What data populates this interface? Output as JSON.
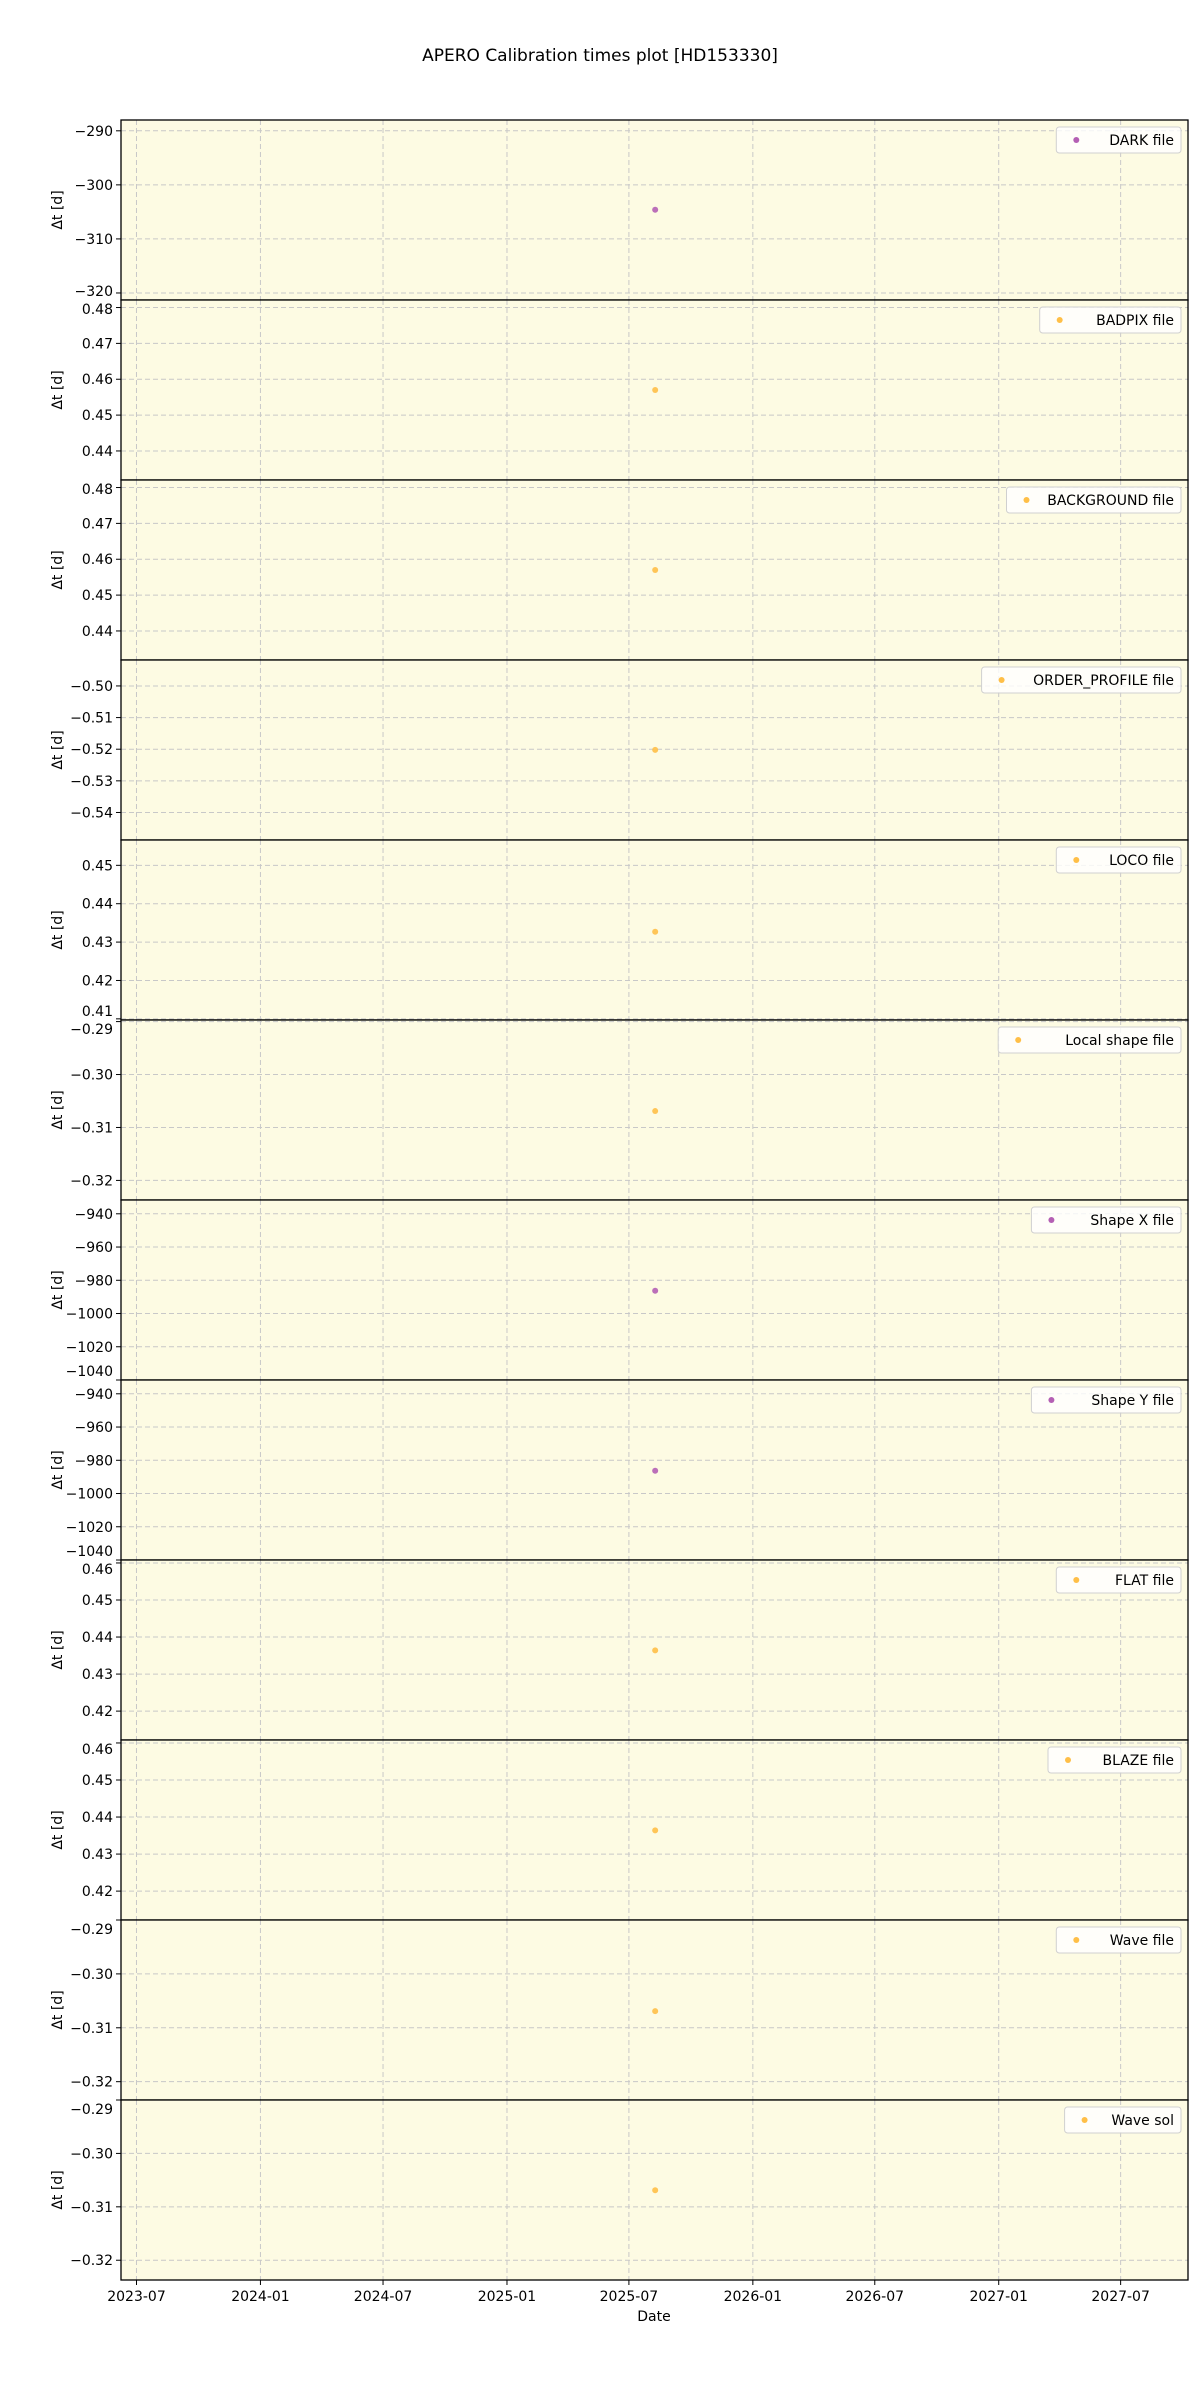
{
  "chart_data": {
    "type": "scatter",
    "title": "APERO Calibration times plot [HD153330]",
    "xlabel": "Date",
    "xlim": [
      "2023-06-08",
      "2027-10-09"
    ],
    "xticks": [
      "2023-07",
      "2024-01",
      "2024-07",
      "2025-01",
      "2025-07",
      "2026-01",
      "2026-07",
      "2027-01",
      "2027-07"
    ],
    "grid": true,
    "background_color": "#fdfbe3",
    "legend_placement": "upper right",
    "colors": {
      "purple": "#b45fb4",
      "orange": "#ffbf47"
    },
    "panels": [
      {
        "name": "DARK file",
        "ylabel": "Δt [d]",
        "color": "purple",
        "ylim": [
          -321.3,
          -288.0
        ],
        "yticks": [
          "−290",
          "−300",
          "−310",
          "−320"
        ],
        "ytick_values": [
          -290,
          -300,
          -310,
          -320
        ],
        "points": [
          {
            "x": "2025-08-09",
            "y": -304.6
          }
        ]
      },
      {
        "name": "BADPIX file",
        "ylabel": "Δt [d]",
        "color": "orange",
        "ylim": [
          0.4319,
          0.4821
        ],
        "yticks": [
          "0.48",
          "0.47",
          "0.46",
          "0.45",
          "0.44"
        ],
        "ytick_values": [
          0.48,
          0.47,
          0.46,
          0.45,
          0.44
        ],
        "points": [
          {
            "x": "2025-08-09",
            "y": 0.457
          }
        ]
      },
      {
        "name": "BACKGROUND file",
        "ylabel": "Δt [d]",
        "color": "orange",
        "ylim": [
          0.4319,
          0.4821
        ],
        "yticks": [
          "0.48",
          "0.47",
          "0.46",
          "0.45",
          "0.44"
        ],
        "ytick_values": [
          0.48,
          0.47,
          0.46,
          0.45,
          0.44
        ],
        "points": [
          {
            "x": "2025-08-09",
            "y": 0.457
          }
        ]
      },
      {
        "name": "ORDER_PROFILE file",
        "ylabel": "Δt [d]",
        "color": "orange",
        "ylim": [
          -0.5487,
          -0.4918
        ],
        "yticks": [
          "−0.50",
          "−0.51",
          "−0.52",
          "−0.53",
          "−0.54"
        ],
        "ytick_values": [
          -0.5,
          -0.51,
          -0.52,
          -0.53,
          -0.54
        ],
        "points": [
          {
            "x": "2025-08-09",
            "y": -0.5202
          }
        ]
      },
      {
        "name": "LOCO file",
        "ylabel": "Δt [d]",
        "color": "orange",
        "ylim": [
          0.4097,
          0.4566
        ],
        "yticks": [
          "0.45",
          "0.44",
          "0.43",
          "0.42",
          "0.41"
        ],
        "ytick_values": [
          0.45,
          0.44,
          0.43,
          0.42,
          0.41
        ],
        "points": [
          {
            "x": "2025-08-09",
            "y": 0.4327
          }
        ]
      },
      {
        "name": "Local shape file",
        "ylabel": "Δt [d]",
        "color": "orange",
        "ylim": [
          -0.3237,
          -0.2897
        ],
        "yticks": [
          "−0.29",
          "−0.30",
          "−0.31",
          "−0.32"
        ],
        "ytick_values": [
          -0.29,
          -0.3,
          -0.31,
          -0.32
        ],
        "points": [
          {
            "x": "2025-08-09",
            "y": -0.3069
          }
        ]
      },
      {
        "name": "Shape X file",
        "ylabel": "Δt [d]",
        "color": "purple",
        "ylim": [
          -1040,
          -931.7
        ],
        "yticks": [
          "−940",
          "−960",
          "−980",
          "−1000",
          "−1020",
          "−1040"
        ],
        "ytick_values": [
          -940,
          -960,
          -980,
          -1000,
          -1020,
          -1040
        ],
        "points": [
          {
            "x": "2025-08-09",
            "y": -986.3
          }
        ]
      },
      {
        "name": "Shape Y file",
        "ylabel": "Δt [d]",
        "color": "purple",
        "ylim": [
          -1040,
          -931.7
        ],
        "yticks": [
          "−940",
          "−960",
          "−980",
          "−1000",
          "−1020",
          "−1040"
        ],
        "ytick_values": [
          -940,
          -960,
          -980,
          -1000,
          -1020,
          -1040
        ],
        "points": [
          {
            "x": "2025-08-09",
            "y": -986.3
          }
        ]
      },
      {
        "name": "FLAT file",
        "ylabel": "Δt [d]",
        "color": "orange",
        "ylim": [
          0.4122,
          0.4608
        ],
        "yticks": [
          "0.46",
          "0.45",
          "0.44",
          "0.43",
          "0.42"
        ],
        "ytick_values": [
          0.46,
          0.45,
          0.44,
          0.43,
          0.42
        ],
        "points": [
          {
            "x": "2025-08-09",
            "y": 0.4364
          }
        ]
      },
      {
        "name": "BLAZE file",
        "ylabel": "Δt [d]",
        "color": "orange",
        "ylim": [
          0.4122,
          0.4608
        ],
        "yticks": [
          "0.46",
          "0.45",
          "0.44",
          "0.43",
          "0.42"
        ],
        "ytick_values": [
          0.46,
          0.45,
          0.44,
          0.43,
          0.42
        ],
        "points": [
          {
            "x": "2025-08-09",
            "y": 0.4364
          }
        ]
      },
      {
        "name": "Wave file",
        "ylabel": "Δt [d]",
        "color": "orange",
        "ylim": [
          -0.3234,
          -0.29
        ],
        "yticks": [
          "−0.29",
          "−0.30",
          "−0.31",
          "−0.32"
        ],
        "ytick_values": [
          -0.29,
          -0.3,
          -0.31,
          -0.32
        ],
        "points": [
          {
            "x": "2025-08-09",
            "y": -0.3069
          }
        ]
      },
      {
        "name": "Wave sol",
        "ylabel": "Δt [d]",
        "color": "orange",
        "ylim": [
          -0.3237,
          -0.29
        ],
        "yticks": [
          "−0.29",
          "−0.30",
          "−0.31",
          "−0.32"
        ],
        "ytick_values": [
          -0.29,
          -0.3,
          -0.31,
          -0.32
        ],
        "points": [
          {
            "x": "2025-08-09",
            "y": -0.3069
          }
        ]
      }
    ]
  }
}
